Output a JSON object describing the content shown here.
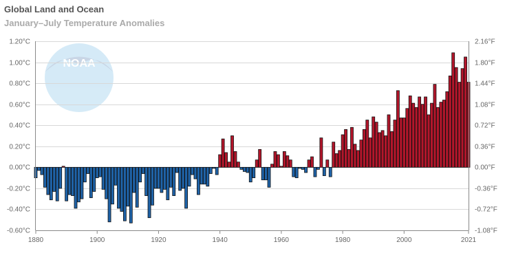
{
  "title": "Global Land and Ocean",
  "subtitle": "January–July Temperature Anomalies",
  "chart_data": {
    "type": "bar",
    "title": "Global Land and Ocean",
    "subtitle": "January–July Temperature Anomalies",
    "xlabel": "",
    "ylabel": "",
    "ylim": [
      -0.6,
      1.2
    ],
    "y_unit": "°C",
    "y2_unit": "°F",
    "grid": true,
    "legend": "none",
    "x_ticks": [
      "1880",
      "1900",
      "1920",
      "1940",
      "1960",
      "1980",
      "2000",
      "2021"
    ],
    "y_ticks": [
      "1.20°C",
      "1.00°C",
      "0.80°C",
      "0.60°C",
      "0.40°C",
      "0.20°C",
      "0.00°C",
      "-0.20°C",
      "-0.40°C",
      "-0.60°C"
    ],
    "y2_ticks": [
      "2.16°F",
      "1.80°F",
      "1.44°F",
      "1.08°F",
      "0.72°F",
      "0.36°F",
      "0.00°F",
      "-0.36°F",
      "-0.72°F",
      "-1.08°F"
    ],
    "colors": {
      "positive": "#b3162b",
      "negative": "#1f63a8"
    },
    "start_year": 1880,
    "years_end": 2021,
    "values": [
      -0.1,
      -0.03,
      -0.07,
      -0.19,
      -0.26,
      -0.31,
      -0.23,
      -0.32,
      -0.2,
      0.01,
      -0.32,
      -0.26,
      -0.27,
      -0.39,
      -0.33,
      -0.3,
      -0.14,
      -0.06,
      -0.29,
      -0.23,
      -0.1,
      -0.09,
      -0.21,
      -0.3,
      -0.52,
      -0.35,
      -0.17,
      -0.39,
      -0.42,
      -0.51,
      -0.37,
      -0.53,
      -0.24,
      -0.38,
      -0.14,
      -0.06,
      -0.27,
      -0.48,
      -0.36,
      -0.2,
      -0.2,
      -0.24,
      -0.21,
      -0.31,
      -0.19,
      -0.27,
      -0.05,
      -0.22,
      -0.2,
      -0.39,
      -0.18,
      -0.07,
      -0.11,
      -0.26,
      -0.16,
      -0.16,
      -0.18,
      -0.06,
      -0.01,
      -0.07,
      0.12,
      0.27,
      0.14,
      0.05,
      0.3,
      0.15,
      0.05,
      -0.02,
      -0.04,
      -0.05,
      -0.14,
      -0.1,
      0.07,
      0.17,
      -0.12,
      -0.12,
      -0.19,
      0.03,
      0.15,
      0.12,
      0.01,
      0.15,
      0.11,
      0.07,
      -0.09,
      -0.1,
      -0.01,
      -0.02,
      -0.05,
      0.07,
      0.1,
      -0.09,
      -0.02,
      0.28,
      -0.08,
      0.07,
      -0.09,
      0.24,
      0.13,
      0.16,
      0.31,
      0.36,
      0.17,
      0.38,
      0.22,
      0.16,
      0.26,
      0.36,
      0.45,
      0.28,
      0.48,
      0.43,
      0.33,
      0.35,
      0.3,
      0.5,
      0.34,
      0.45,
      0.73,
      0.47,
      0.47,
      0.56,
      0.68,
      0.61,
      0.57,
      0.67,
      0.6,
      0.67,
      0.5,
      0.61,
      0.79,
      0.57,
      0.62,
      0.64,
      0.72,
      0.87,
      1.09,
      0.95,
      0.81,
      0.94,
      1.05,
      0.81
    ]
  }
}
